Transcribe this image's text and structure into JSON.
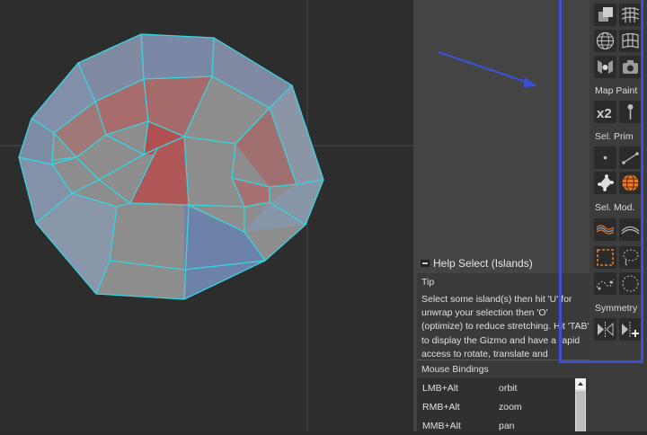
{
  "viewport": {
    "name": "uv-viewport",
    "colors": {
      "background": "#2d2d2d",
      "axis": "#4a4a4a",
      "edge": "#36d6e0",
      "face": "#8c8c8c",
      "stretched": "#a85a5a",
      "compressed": "#5f7898"
    }
  },
  "toolbar": {
    "sections": {
      "map_paint": "Map Paint",
      "sel_prim": "Sel. Prim",
      "sel_mod": "Sel. Mod.",
      "symmetry": "Symmetry"
    },
    "icons": {
      "x2_label": "x2"
    },
    "highlight_color": "#3d4fd6",
    "active_color": "#e87a2a"
  },
  "help": {
    "title": "Help Select (Islands)",
    "tip_label": "Tip",
    "tip_text": "Select some island(s) then hit 'U' for unwrap your selection then 'O' (optimize) to reduce stretching. Hit 'TAB' to display the Gizmo and have a rapid access to rotate, translate and",
    "mouse_bindings_label": "Mouse Bindings",
    "bindings": [
      {
        "key": "LMB+Alt",
        "action": "orbit"
      },
      {
        "key": "RMB+Alt",
        "action": "zoom"
      },
      {
        "key": "MMB+Alt",
        "action": "pan"
      }
    ]
  }
}
